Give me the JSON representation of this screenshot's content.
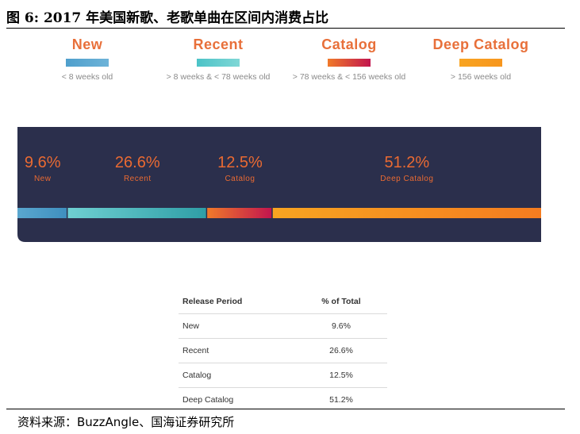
{
  "figure": {
    "title": "图 6: 2017 年美国新歌、老歌单曲在区间内消费占比",
    "source": "资料来源：BuzzAngle、国海证券研究所"
  },
  "legend": [
    {
      "name": "New",
      "desc": "< 8 weeks old",
      "color": "#e8703a",
      "swatch": [
        "#4f9fcc",
        "#6db3d8"
      ]
    },
    {
      "name": "Recent",
      "desc": "> 8 weeks & < 78 weeks old",
      "color": "#e8703a",
      "swatch": [
        "#4cc3c7",
        "#7fd7d6"
      ]
    },
    {
      "name": "Catalog",
      "desc": "> 78 weeks & < 156 weeks old",
      "color": "#e8703a",
      "swatch": [
        "#f07a2a",
        "#c2154e"
      ]
    },
    {
      "name": "Deep Catalog",
      "desc": "> 156 weeks old",
      "color": "#e8703a",
      "swatch": [
        "#f8a421",
        "#f7961e"
      ]
    }
  ],
  "chart_data": {
    "type": "bar",
    "categories": [
      "New",
      "Recent",
      "Catalog",
      "Deep Catalog"
    ],
    "values": [
      9.6,
      26.6,
      12.5,
      51.2
    ],
    "value_labels": [
      "9.6%",
      "26.6%",
      "12.5%",
      "51.2%"
    ],
    "unit": "%",
    "stacked_100": true,
    "colors": [
      "#4f9fcc",
      "#47b8bf",
      "#c8174f",
      "#f79a1e"
    ],
    "band_color": "#2b2f4c",
    "label_color": "#ea6a32"
  },
  "table": {
    "headers": [
      "Release Period",
      "% of Total"
    ],
    "rows": [
      [
        "New",
        "9.6%"
      ],
      [
        "Recent",
        "26.6%"
      ],
      [
        "Catalog",
        "12.5%"
      ],
      [
        "Deep Catalog",
        "51.2%"
      ]
    ]
  }
}
